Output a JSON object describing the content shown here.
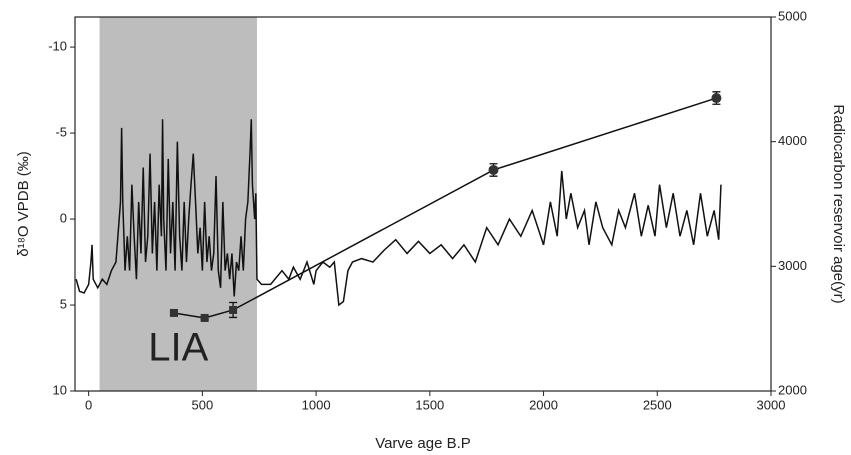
{
  "chart_data": {
    "type": "line",
    "xlabel": "Varve age B.P",
    "ylabel": "δ¹⁸O VPDB (‰)",
    "y2label": "Radiocarbon reservoir age(yr)",
    "xlim": [
      -60,
      3000
    ],
    "xticks": [
      0,
      500,
      1000,
      1500,
      2000,
      2500,
      3000
    ],
    "ylim": [
      10,
      -11.75
    ],
    "yticks": [
      -10,
      -5,
      0,
      5,
      10
    ],
    "y2lim": [
      2000,
      5000
    ],
    "y2ticks": [
      2000,
      3000,
      4000,
      5000
    ],
    "shaded_region": {
      "x": [
        48,
        740
      ],
      "label": "LIA",
      "color": "#bdbdbd"
    },
    "series": [
      {
        "color": "#111111",
        "x": [
          -55,
          -40,
          -20,
          0,
          10,
          15,
          20,
          40,
          60,
          80,
          100,
          120,
          140,
          145,
          150,
          160,
          170,
          180,
          190,
          200,
          210,
          220,
          230,
          240,
          250,
          260,
          270,
          280,
          290,
          300,
          310,
          320,
          325,
          330,
          340,
          350,
          360,
          370,
          380,
          390,
          400,
          410,
          420,
          430,
          440,
          450,
          460,
          470,
          480,
          490,
          500,
          510,
          520,
          530,
          540,
          550,
          560,
          570,
          580,
          590,
          600,
          610,
          620,
          630,
          640,
          650,
          660,
          670,
          680,
          690,
          700,
          710,
          715,
          720,
          730,
          735,
          740,
          760,
          800,
          850,
          880,
          900,
          930,
          960,
          990,
          1000,
          1030,
          1060,
          1080,
          1100,
          1120,
          1140,
          1160,
          1200,
          1250,
          1300,
          1350,
          1400,
          1450,
          1500,
          1550,
          1600,
          1650,
          1700,
          1750,
          1800,
          1850,
          1900,
          1950,
          2000,
          2030,
          2060,
          2080,
          2100,
          2120,
          2150,
          2180,
          2200,
          2230,
          2260,
          2300,
          2330,
          2360,
          2400,
          2430,
          2460,
          2490,
          2510,
          2540,
          2570,
          2600,
          2630,
          2660,
          2690,
          2720,
          2750,
          2770,
          2780
        ],
        "values": [
          3.5,
          4.2,
          4.3,
          3.8,
          2.5,
          1.5,
          3.5,
          4.0,
          3.5,
          3.8,
          3.0,
          2.5,
          -1,
          -5.3,
          -1,
          3,
          1,
          3,
          -2,
          1,
          3.5,
          -1,
          2,
          -3,
          2.5,
          1,
          -3.8,
          2,
          -1,
          3,
          -2,
          1,
          -5.8,
          0,
          3,
          -3.5,
          2,
          -1,
          3,
          -4.5,
          1,
          3,
          -1,
          2.5,
          0,
          -2,
          -3.8,
          -1,
          2,
          0.5,
          3,
          -1,
          2.5,
          1,
          3,
          2,
          -2.5,
          3,
          4,
          -1,
          3,
          2,
          3.5,
          2,
          4.5,
          2.5,
          3,
          1,
          3,
          0,
          -1,
          -4,
          -5.8,
          -2,
          0,
          -1.5,
          3.5,
          3.8,
          3.8,
          3,
          3.5,
          2.8,
          3.5,
          2.5,
          3.8,
          3.0,
          2.5,
          2.8,
          2.5,
          5,
          4.8,
          3,
          2.5,
          2.3,
          2.5,
          1.8,
          1.2,
          2.0,
          1.3,
          2,
          1.5,
          2.3,
          1.5,
          2.5,
          0.5,
          1.5,
          0,
          1,
          -0.5,
          1.5,
          -1,
          1,
          -2.8,
          0,
          -1.5,
          0.5,
          -0.5,
          1.5,
          -1,
          0.5,
          1.5,
          -0.5,
          0.5,
          -1.5,
          1,
          -0.8,
          1,
          -2,
          0.5,
          -1.5,
          1,
          -0.5,
          1.5,
          -1.5,
          1,
          -0.5,
          1.2,
          -2
        ]
      },
      {
        "color": "#111111",
        "axis": "y2",
        "x": [
          375,
          510,
          635,
          1780,
          2760
        ],
        "values": [
          2626,
          2586,
          2650,
          3773,
          4350
        ],
        "errors": [
          15,
          12,
          60,
          50,
          50
        ],
        "markers": [
          "square",
          "square",
          "square",
          "circle",
          "circle"
        ]
      }
    ]
  }
}
